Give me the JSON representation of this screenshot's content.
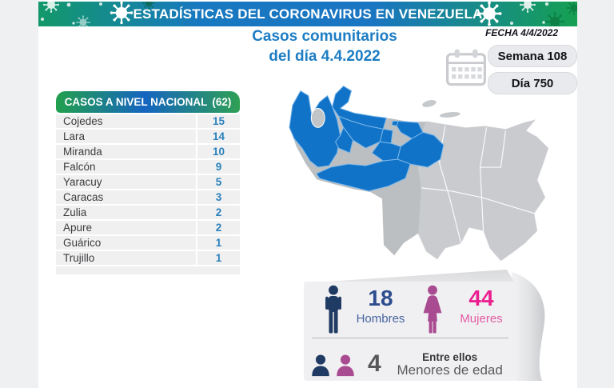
{
  "header": {
    "title": "ESTADÍSTICAS DEL CORONAVIRUS EN VENEZUELA"
  },
  "title": {
    "line1": "Casos comunitarios",
    "line2": "del día 4.4.2022"
  },
  "date_label": "FECHA 4/4/2022",
  "counters": {
    "week": "Semana 108",
    "day": "Día 750"
  },
  "table": {
    "header_label": "CASOS A NIVEL NACIONAL",
    "header_count": "(62)",
    "rows": [
      {
        "state": "Cojedes",
        "cases": "15"
      },
      {
        "state": "Lara",
        "cases": "14"
      },
      {
        "state": "Miranda",
        "cases": "10"
      },
      {
        "state": "Falcón",
        "cases": "9"
      },
      {
        "state": "Yaracuy",
        "cases": "5"
      },
      {
        "state": "Caracas",
        "cases": "3"
      },
      {
        "state": "Zulia",
        "cases": "2"
      },
      {
        "state": "Apure",
        "cases": "2"
      },
      {
        "state": "Guárico",
        "cases": "1"
      },
      {
        "state": "Trujillo",
        "cases": "1"
      }
    ]
  },
  "demographics": {
    "men": {
      "value": "18",
      "label": "Hombres"
    },
    "women": {
      "value": "44",
      "label": "Mujeres"
    },
    "minors": {
      "value": "4",
      "label_top": "Entre ellos",
      "label_bottom": "Menores de edad"
    }
  },
  "colors": {
    "banner_green": "#15a052",
    "banner_blue": "#1a75c2",
    "title_blue": "#1d7dc4",
    "table_value_blue": "#2980ba",
    "map_highlight_blue": "#1173c8",
    "map_base_gray": "#bcbfc2",
    "men_navy": "#1f3a63",
    "men_number": "#2e4d8f",
    "women_magenta": "#a94b91",
    "women_number": "#eb1f90"
  },
  "map": {
    "highlighted_states": [
      "Cojedes",
      "Lara",
      "Miranda",
      "Falcón",
      "Yaracuy",
      "Caracas",
      "Zulia",
      "Apure",
      "Guárico",
      "Trujillo"
    ]
  },
  "chart_data": {
    "type": "table",
    "title": "CASOS A NIVEL NACIONAL (62)",
    "categories": [
      "Cojedes",
      "Lara",
      "Miranda",
      "Falcón",
      "Yaracuy",
      "Caracas",
      "Zulia",
      "Apure",
      "Guárico",
      "Trujillo"
    ],
    "values": [
      15,
      14,
      10,
      9,
      5,
      3,
      2,
      2,
      1,
      1
    ],
    "total": 62,
    "date": "4.4.2022",
    "week": 108,
    "day": 750,
    "men": 18,
    "women": 44,
    "minors": 4
  }
}
